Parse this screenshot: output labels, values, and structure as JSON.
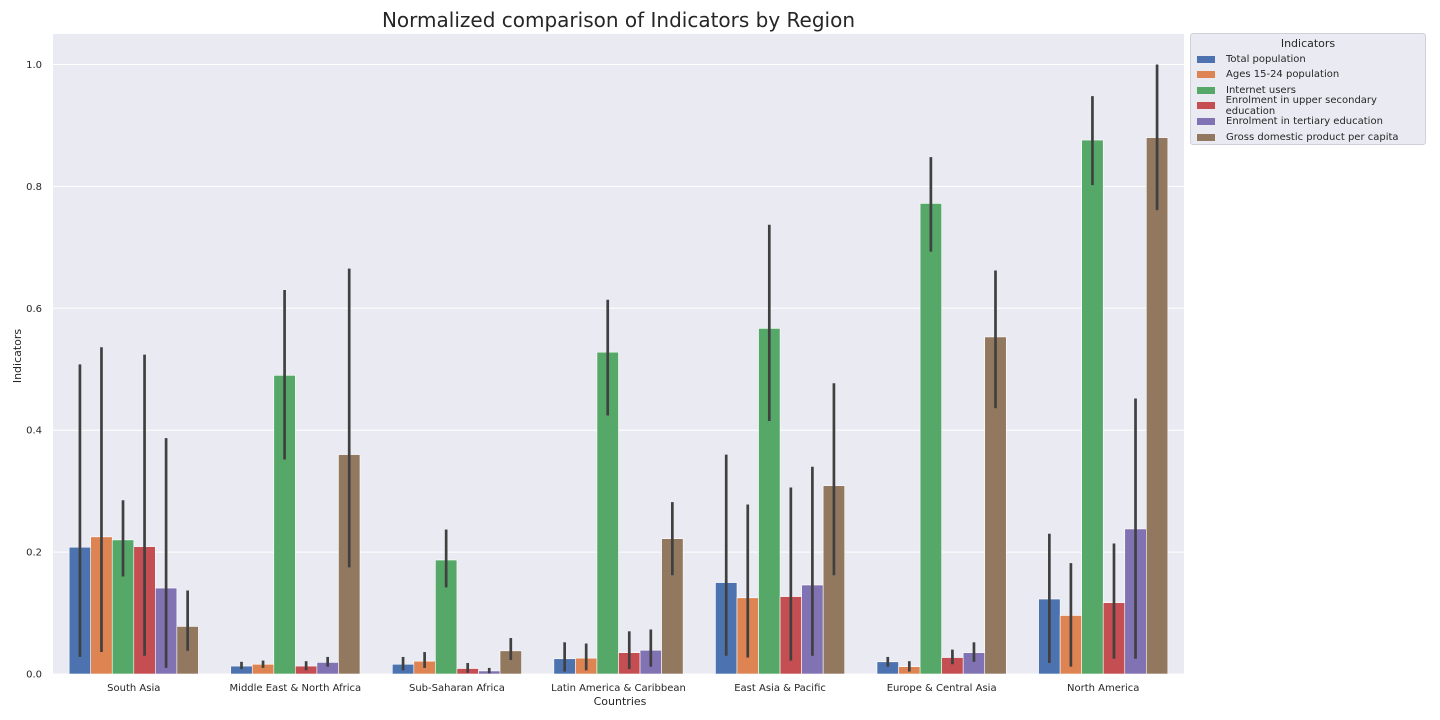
{
  "chart_data": {
    "type": "bar",
    "title": "Normalized comparison of Indicators by Region",
    "xlabel": "Countries",
    "ylabel": "Indicators",
    "ylim": [
      0,
      1.05
    ],
    "yticks": [
      "0.0",
      "0.2",
      "0.4",
      "0.6",
      "0.8",
      "1.0"
    ],
    "grid": true,
    "legend_title": "Indicators",
    "legend_position": "outside upper right",
    "categories": [
      "South Asia",
      "Middle East & North Africa",
      "Sub-Saharan Africa",
      "Latin America & Caribbean",
      "East Asia & Pacific",
      "Europe & Central Asia",
      "North America"
    ],
    "series": [
      {
        "name": "Total population",
        "color": "#4c72b0",
        "values": [
          0.208,
          0.013,
          0.016,
          0.025,
          0.15,
          0.02,
          0.123
        ],
        "error_low": [
          0.028,
          0.008,
          0.006,
          0.004,
          0.03,
          0.012,
          0.018
        ],
        "error_high": [
          0.508,
          0.02,
          0.028,
          0.052,
          0.36,
          0.028,
          0.23
        ]
      },
      {
        "name": "Ages 15-24 population",
        "color": "#dd8452",
        "values": [
          0.225,
          0.016,
          0.021,
          0.026,
          0.125,
          0.012,
          0.096
        ],
        "error_low": [
          0.036,
          0.01,
          0.01,
          0.006,
          0.027,
          0.004,
          0.012
        ],
        "error_high": [
          0.536,
          0.022,
          0.036,
          0.05,
          0.278,
          0.021,
          0.182
        ]
      },
      {
        "name": "Internet users",
        "color": "#55a868",
        "values": [
          0.22,
          0.49,
          0.187,
          0.528,
          0.567,
          0.772,
          0.876
        ],
        "error_low": [
          0.16,
          0.352,
          0.142,
          0.424,
          0.415,
          0.693,
          0.802
        ],
        "error_high": [
          0.285,
          0.63,
          0.237,
          0.614,
          0.737,
          0.848,
          0.948
        ]
      },
      {
        "name": "Enrolment in upper secondary education",
        "color": "#c44e52",
        "values": [
          0.209,
          0.013,
          0.009,
          0.035,
          0.127,
          0.027,
          0.117
        ],
        "error_low": [
          0.03,
          0.006,
          0.002,
          0.008,
          0.022,
          0.016,
          0.025
        ],
        "error_high": [
          0.524,
          0.021,
          0.018,
          0.07,
          0.306,
          0.04,
          0.214
        ]
      },
      {
        "name": "Enrolment in tertiary education",
        "color": "#8172b3",
        "values": [
          0.141,
          0.019,
          0.005,
          0.039,
          0.146,
          0.035,
          0.238
        ],
        "error_low": [
          0.01,
          0.012,
          0.001,
          0.012,
          0.03,
          0.02,
          0.025
        ],
        "error_high": [
          0.387,
          0.028,
          0.01,
          0.073,
          0.34,
          0.052,
          0.452
        ]
      },
      {
        "name": "Gross domestic product per capita",
        "color": "#937860",
        "values": [
          0.078,
          0.36,
          0.038,
          0.222,
          0.309,
          0.553,
          0.88
        ],
        "error_low": [
          0.038,
          0.175,
          0.023,
          0.162,
          0.162,
          0.436,
          0.761
        ],
        "error_high": [
          0.137,
          0.665,
          0.059,
          0.282,
          0.477,
          0.662,
          1.0
        ]
      }
    ]
  },
  "style": {
    "plot_background": "#eaeaf2",
    "grid_color": "#ffffff",
    "error_bar_color": "#404040"
  }
}
